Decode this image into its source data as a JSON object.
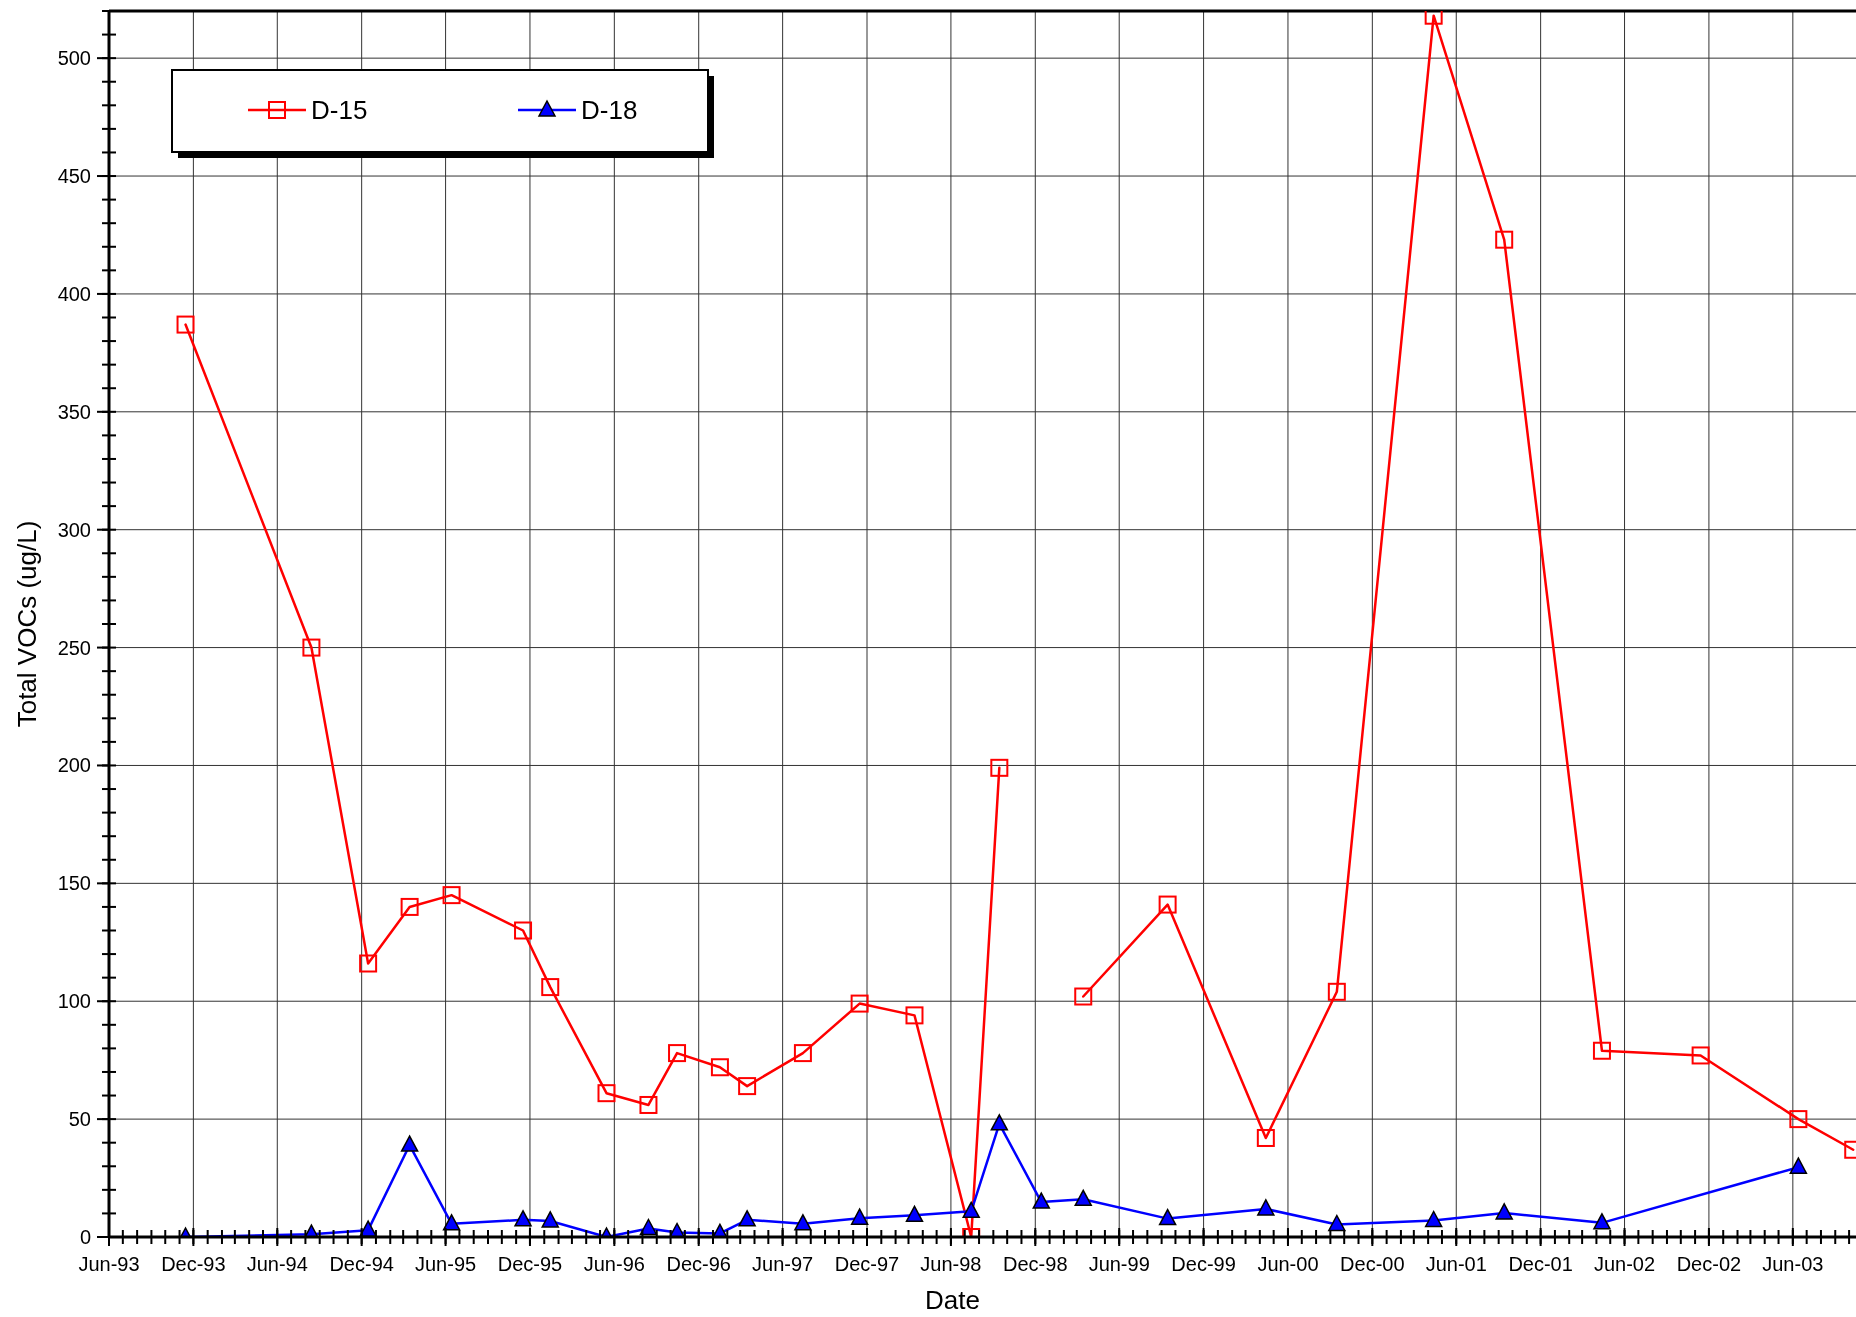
{
  "chart_data": {
    "type": "line",
    "xlabel": "Date",
    "ylabel": "Total VOCs (ug/L)",
    "xlim": [
      "1993-06-01",
      "2003-10-16"
    ],
    "ylim": [
      0,
      520
    ],
    "xticks": [
      {
        "value": "1993-06-01",
        "label": "Jun-93"
      },
      {
        "value": "1993-12-01",
        "label": "Dec-93"
      },
      {
        "value": "1994-06-01",
        "label": "Jun-94"
      },
      {
        "value": "1994-12-01",
        "label": "Dec-94"
      },
      {
        "value": "1995-06-01",
        "label": "Jun-95"
      },
      {
        "value": "1995-12-01",
        "label": "Dec-95"
      },
      {
        "value": "1996-06-01",
        "label": "Jun-96"
      },
      {
        "value": "1996-12-01",
        "label": "Dec-96"
      },
      {
        "value": "1997-06-01",
        "label": "Jun-97"
      },
      {
        "value": "1997-12-01",
        "label": "Dec-97"
      },
      {
        "value": "1998-06-01",
        "label": "Jun-98"
      },
      {
        "value": "1998-12-01",
        "label": "Dec-98"
      },
      {
        "value": "1999-06-01",
        "label": "Jun-99"
      },
      {
        "value": "1999-12-01",
        "label": "Dec-99"
      },
      {
        "value": "2000-06-01",
        "label": "Jun-00"
      },
      {
        "value": "2000-12-01",
        "label": "Dec-00"
      },
      {
        "value": "2001-06-01",
        "label": "Jun-01"
      },
      {
        "value": "2001-12-01",
        "label": "Dec-01"
      },
      {
        "value": "2002-06-01",
        "label": "Jun-02"
      },
      {
        "value": "2002-12-01",
        "label": "Dec-02"
      },
      {
        "value": "2003-06-01",
        "label": "Jun-03"
      }
    ],
    "yticks": [
      0,
      50,
      100,
      150,
      200,
      250,
      300,
      350,
      400,
      450,
      500
    ],
    "grid": true,
    "legend": "top left",
    "line_style": "solid",
    "series": [
      {
        "name": "D-15",
        "color": "#ff0000",
        "marker": "square",
        "x": [
          "1993-11-14",
          "1994-08-14",
          "1994-12-15",
          "1995-03-15",
          "1995-06-14",
          "1995-11-16",
          "1996-01-14",
          "1996-05-15",
          "1996-08-14",
          "1996-10-15",
          "1997-01-16",
          "1997-03-16",
          "1997-07-15",
          "1997-11-15",
          "1998-03-14",
          "1998-07-15",
          "1998-09-14",
          "1998-12-14",
          "1999-03-15",
          "1999-09-14",
          "2000-04-14",
          "2000-09-15",
          "2001-04-13",
          "2001-09-13",
          "2002-04-13",
          "2002-11-13",
          "2003-06-13",
          "2003-10-10"
        ],
        "values": [
          387,
          250,
          116,
          140,
          145,
          130,
          106,
          61,
          56,
          78,
          72,
          64,
          78,
          99,
          94,
          0,
          199,
          null,
          102,
          141,
          42,
          104,
          518,
          423,
          79,
          77,
          50,
          37
        ]
      },
      {
        "name": "D-18",
        "color": "#0000ff",
        "marker": "triangle",
        "x": [
          "1993-11-14",
          "1994-08-14",
          "1994-12-15",
          "1995-03-15",
          "1995-06-14",
          "1995-11-16",
          "1996-01-14",
          "1996-05-15",
          "1996-08-14",
          "1996-10-15",
          "1997-01-16",
          "1997-03-16",
          "1997-07-15",
          "1997-11-15",
          "1998-03-14",
          "1998-07-15",
          "1998-09-14",
          "1998-12-14",
          "1999-03-15",
          "1999-09-14",
          "2000-04-14",
          "2000-09-15",
          "2001-04-13",
          "2001-09-13",
          "2002-04-13",
          "2003-06-13"
        ],
        "values": [
          0,
          1.2,
          2.9,
          39,
          5.6,
          7.3,
          6.8,
          0,
          3.6,
          1.9,
          1.5,
          7.3,
          5.6,
          8,
          9.2,
          10.9,
          48,
          14.8,
          16,
          7.8,
          11.9,
          5.3,
          7,
          10.2,
          6,
          29.6
        ]
      }
    ]
  }
}
